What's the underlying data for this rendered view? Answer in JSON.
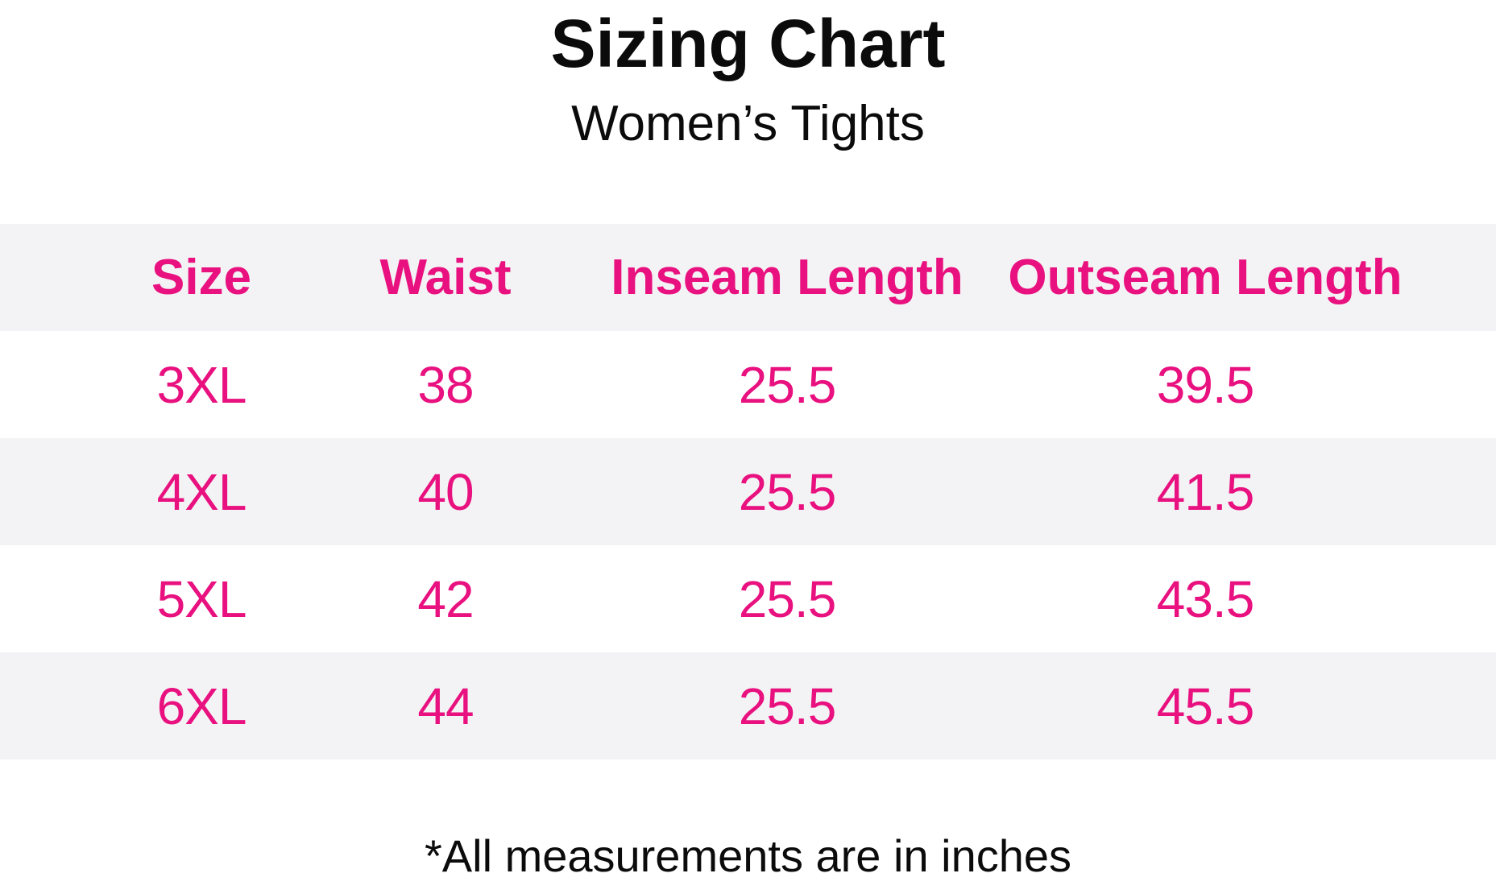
{
  "page": {
    "title": "Sizing Chart",
    "subtitle": "Women’s Tights",
    "footnote": "*All measurements are in inches"
  },
  "colors": {
    "accent_pink": "#e8117f",
    "stripe_gray": "#f3f3f5",
    "text_black": "#0b0b0b",
    "background": "#ffffff"
  },
  "chart_data": {
    "type": "table",
    "title": "Sizing Chart",
    "subtitle": "Women’s Tights",
    "columns": [
      "Size",
      "Waist",
      "Inseam Length",
      "Outseam Length"
    ],
    "rows": [
      [
        "3XL",
        "38",
        "25.5",
        "39.5"
      ],
      [
        "4XL",
        "40",
        "25.5",
        "41.5"
      ],
      [
        "5XL",
        "42",
        "25.5",
        "43.5"
      ],
      [
        "6XL",
        "44",
        "25.5",
        "45.5"
      ]
    ],
    "units_note": "*All measurements are in inches",
    "layout": {
      "stripe_pattern": "header and even data rows shaded light gray, odd data rows white",
      "text_alignment": "center",
      "grid_lines": false
    }
  }
}
